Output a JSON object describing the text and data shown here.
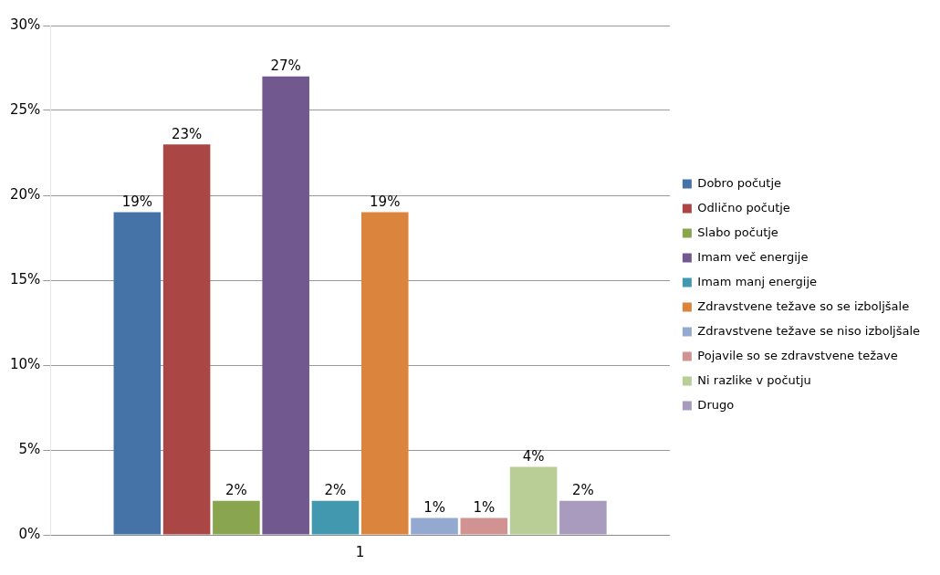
{
  "chart_data": {
    "type": "bar",
    "categories": [
      "1"
    ],
    "series": [
      {
        "name": "Dobro počutje",
        "color": "#4572a7",
        "values": [
          19
        ],
        "value_labels": [
          "19%"
        ]
      },
      {
        "name": "Odlično počutje",
        "color": "#aa4643",
        "values": [
          23
        ],
        "value_labels": [
          "23%"
        ]
      },
      {
        "name": "Slabo počutje",
        "color": "#89a54e",
        "values": [
          2
        ],
        "value_labels": [
          "2%"
        ]
      },
      {
        "name": "Imam več energije",
        "color": "#71588f",
        "values": [
          27
        ],
        "value_labels": [
          "27%"
        ]
      },
      {
        "name": "Imam manj energije",
        "color": "#4198af",
        "values": [
          2
        ],
        "value_labels": [
          "2%"
        ]
      },
      {
        "name": "Zdravstvene težave so se izboljšale",
        "color": "#db843d",
        "values": [
          19
        ],
        "value_labels": [
          "19%"
        ]
      },
      {
        "name": "Zdravstvene težave se niso izboljšale",
        "color": "#93a9cf",
        "values": [
          1
        ],
        "value_labels": [
          "1%"
        ]
      },
      {
        "name": "Pojavile so se zdravstvene težave",
        "color": "#d19392",
        "values": [
          1
        ],
        "value_labels": [
          "1%"
        ]
      },
      {
        "name": "Ni razlike v počutju",
        "color": "#b9cd96",
        "values": [
          4
        ],
        "value_labels": [
          "4%"
        ]
      },
      {
        "name": "Drugo",
        "color": "#a99bbd",
        "values": [
          2
        ],
        "value_labels": [
          "2%"
        ]
      }
    ],
    "ylim": [
      0,
      30
    ],
    "yticks": [
      {
        "value": 0,
        "label": "0%"
      },
      {
        "value": 5,
        "label": "5%"
      },
      {
        "value": 10,
        "label": "10%"
      },
      {
        "value": 15,
        "label": "15%"
      },
      {
        "value": 20,
        "label": "20%"
      },
      {
        "value": 25,
        "label": "25%"
      },
      {
        "value": 30,
        "label": "30%"
      }
    ],
    "grid": "y",
    "legend": "right"
  }
}
